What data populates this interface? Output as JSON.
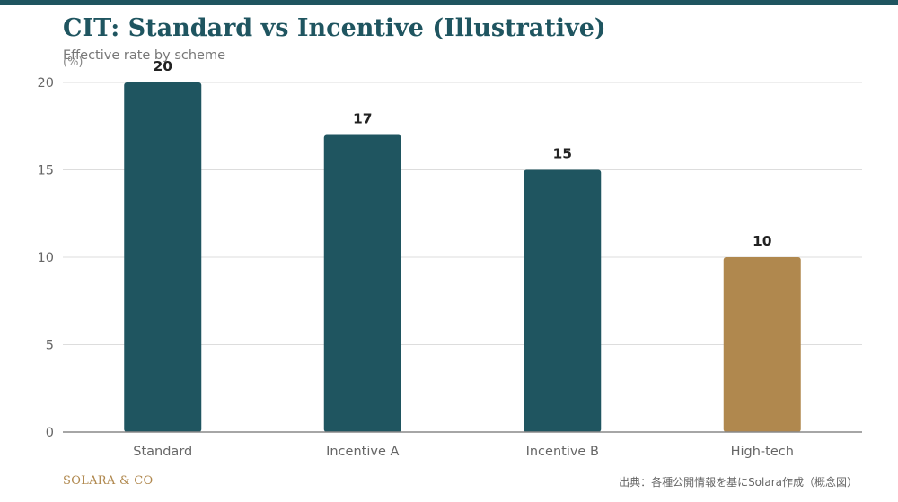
{
  "header": {
    "title": "CIT: Standard vs Incentive (Illustrative)",
    "subtitle": "Effective rate by scheme",
    "unit": "(%)"
  },
  "footer": {
    "brand": "SOLARA & CO",
    "source": "出典：各種公開情報を基にSolara作成（概念図）"
  },
  "colors": {
    "top_bar": "#1f5560",
    "primary": "#1f5560",
    "highlight": "#b0884e",
    "brand": "#b0884e",
    "grid": "#dddddd",
    "axis": "#888888"
  },
  "chart_data": {
    "type": "bar",
    "title": "CIT: Standard vs Incentive (Illustrative)",
    "subtitle": "Effective rate by scheme",
    "xlabel": "",
    "ylabel": "(%)",
    "categories": [
      "Standard",
      "Incentive A",
      "Incentive B",
      "High-tech"
    ],
    "values": [
      20,
      17,
      15,
      10
    ],
    "highlight_index": 3,
    "ylim": [
      0,
      20
    ],
    "yticks": [
      0,
      5,
      10,
      15,
      20
    ],
    "grid": true,
    "data_labels": true,
    "legend": "none"
  }
}
